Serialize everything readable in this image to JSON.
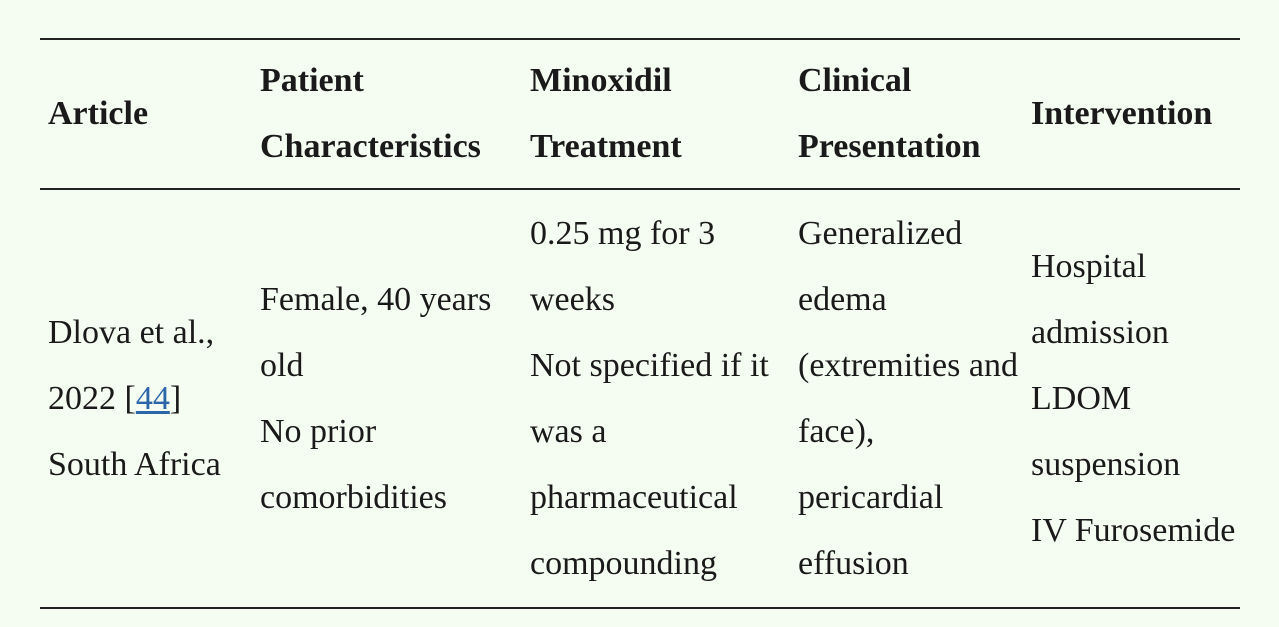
{
  "table": {
    "headers": [
      "Article",
      "Patient Characteristics",
      "Minoxidil Treatment",
      "Clinical Presentation",
      "Intervention"
    ],
    "rows": [
      {
        "article": {
          "text": "Dlova et al., 2022",
          "citation_open": "[",
          "citation": "44",
          "citation_close": "]",
          "country": "South Africa"
        },
        "cells": [
          [
            "Female, 40 years old",
            "No prior comorbidities"
          ],
          [
            "0.25 mg for 3 weeks",
            "Not specified if it was a pharmaceutical compounding"
          ],
          [
            "Generalized edema (extremities and face), pericardial effusion"
          ],
          [
            "Hospital admission",
            "LDOM suspension",
            "IV Furosemide"
          ]
        ]
      }
    ]
  }
}
